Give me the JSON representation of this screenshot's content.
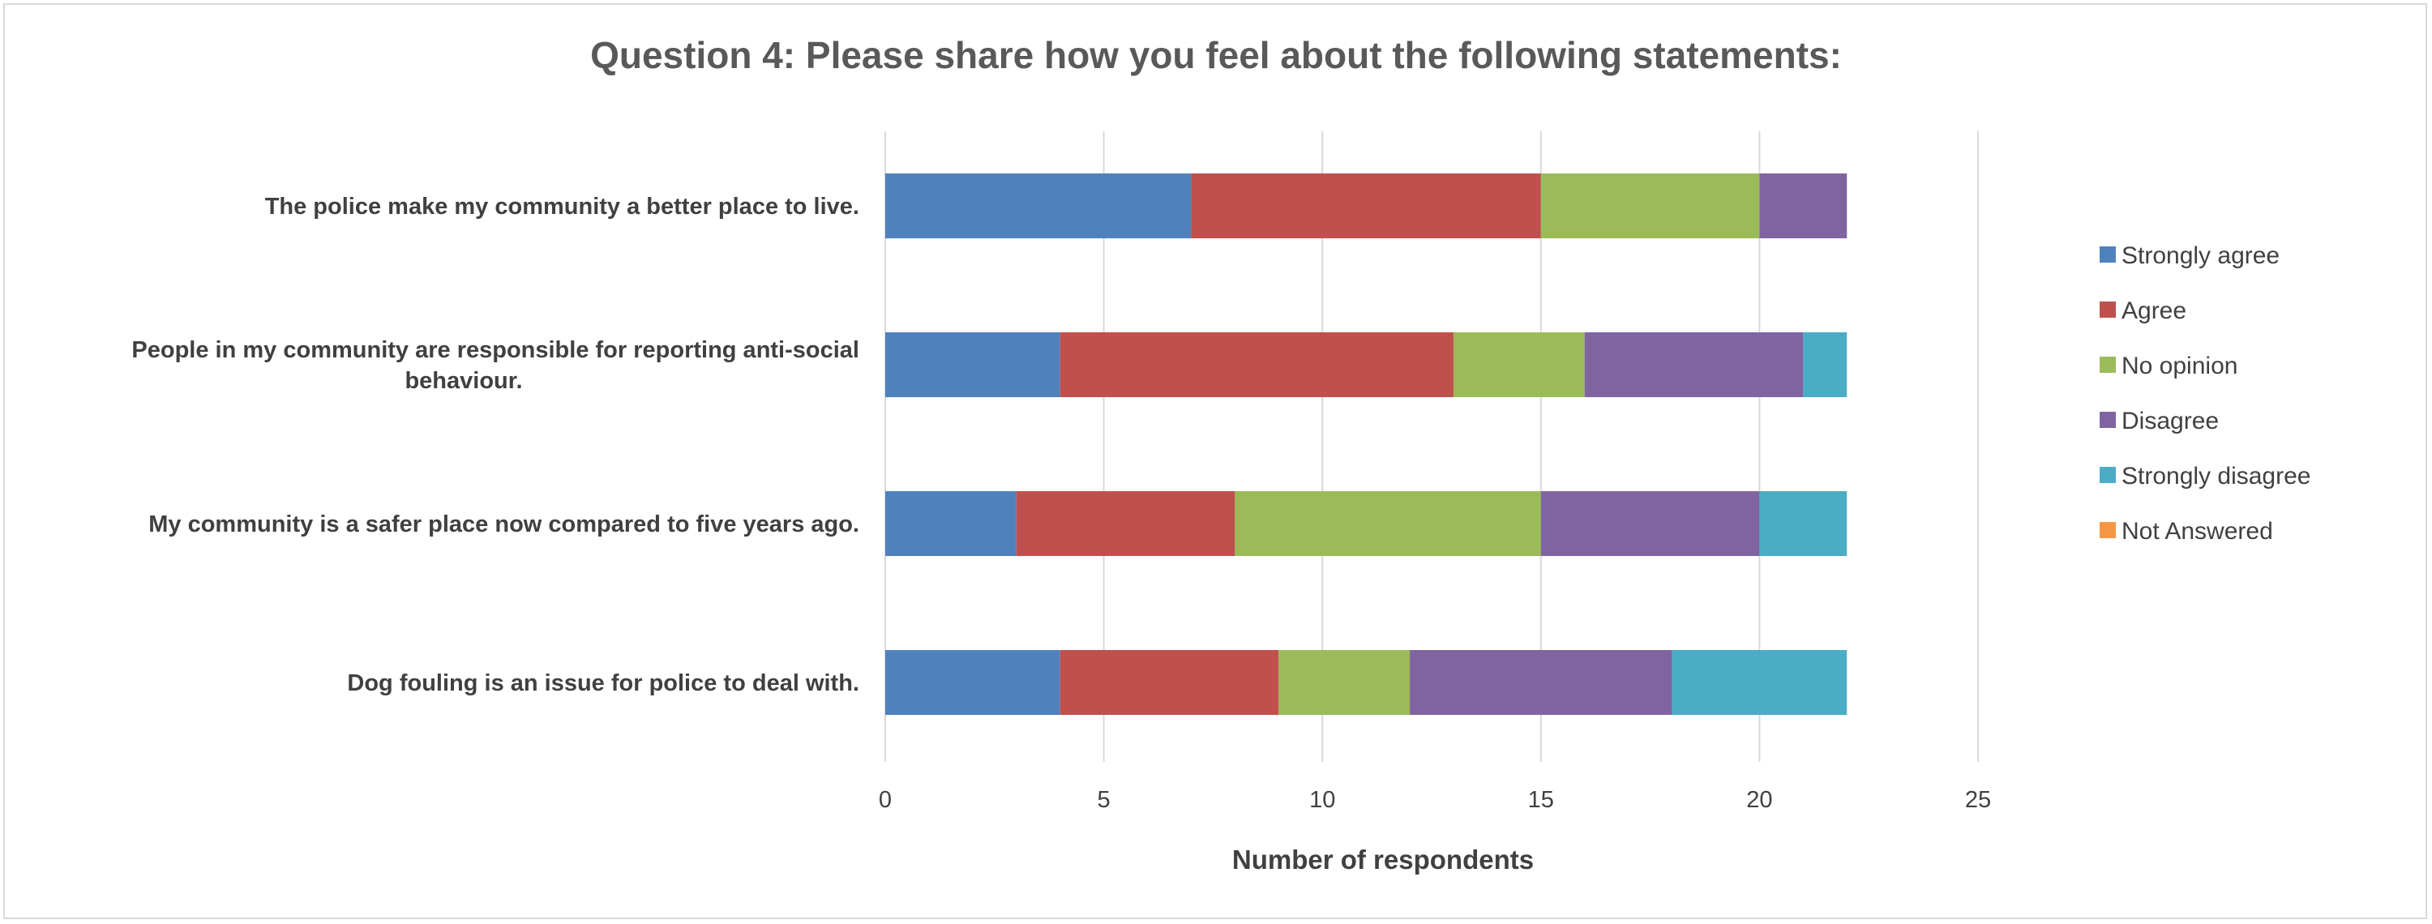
{
  "chart_data": {
    "type": "bar",
    "orientation": "horizontal",
    "stacked": true,
    "title": "Question 4: Please share how you feel about the following statements:",
    "xlabel": "Number of respondents",
    "ylabel": "",
    "xlim": [
      0,
      25
    ],
    "xticks": [
      0,
      5,
      10,
      15,
      20,
      25
    ],
    "grid": true,
    "legend_position": "right",
    "categories": [
      [
        "The police make my community a better place to live."
      ],
      [
        "People in my community are responsible for reporting anti-social",
        "behaviour."
      ],
      [
        "My community is a safer place now compared to five years ago."
      ],
      [
        "Dog fouling is an issue for police to deal with."
      ]
    ],
    "series": [
      {
        "name": "Strongly agree",
        "color": "#4f81bd",
        "values": [
          7,
          4,
          3,
          4
        ]
      },
      {
        "name": "Agree",
        "color": "#c0504d",
        "values": [
          8,
          9,
          5,
          5
        ]
      },
      {
        "name": "No opinion",
        "color": "#9bbb59",
        "values": [
          5,
          3,
          7,
          3
        ]
      },
      {
        "name": "Disagree",
        "color": "#8064a2",
        "values": [
          2,
          5,
          5,
          6
        ]
      },
      {
        "name": "Strongly disagree",
        "color": "#4bacc6",
        "values": [
          0,
          1,
          2,
          4
        ]
      },
      {
        "name": "Not Answered",
        "color": "#f79646",
        "values": [
          0,
          0,
          0,
          0
        ]
      }
    ]
  }
}
